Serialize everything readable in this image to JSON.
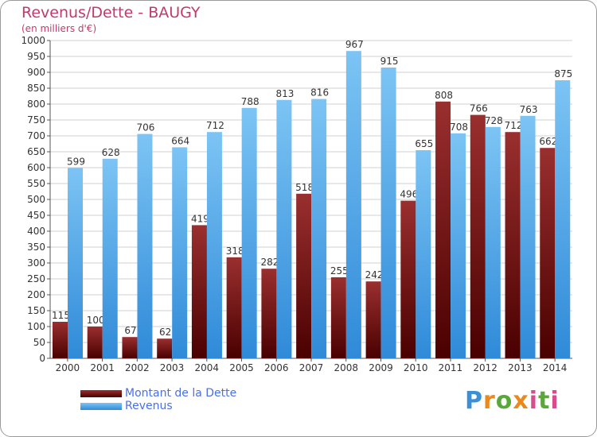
{
  "chart_data": {
    "type": "bar",
    "title": "Revenus/Dette - BAUGY",
    "subtitle": "(en milliers d'€)",
    "categories": [
      "2000",
      "2001",
      "2002",
      "2003",
      "2004",
      "2005",
      "2006",
      "2007",
      "2008",
      "2009",
      "2010",
      "2011",
      "2012",
      "2013",
      "2014"
    ],
    "series": [
      {
        "name": "Montant de la Dette",
        "values": [
          115,
          100,
          67,
          62,
          419,
          318,
          282,
          518,
          255,
          242,
          496,
          808,
          766,
          712,
          662
        ]
      },
      {
        "name": "Revenus",
        "values": [
          599,
          628,
          706,
          664,
          712,
          788,
          813,
          816,
          967,
          915,
          655,
          708,
          728,
          763,
          875
        ]
      }
    ],
    "ylim": [
      0,
      1000
    ],
    "ytick_step": 50,
    "grid": true,
    "legend_position": "bottom-left"
  },
  "colors": {
    "debt_top": "#9a2f2f",
    "debt_bottom": "#4a0000",
    "rev_top": "#7cc4f4",
    "rev_bottom": "#2f8ad8",
    "grid": "#d0d0d0",
    "title": "#c03a6c",
    "legend_text": "#4a6fe8"
  },
  "logo": {
    "text": "Proxiti"
  }
}
